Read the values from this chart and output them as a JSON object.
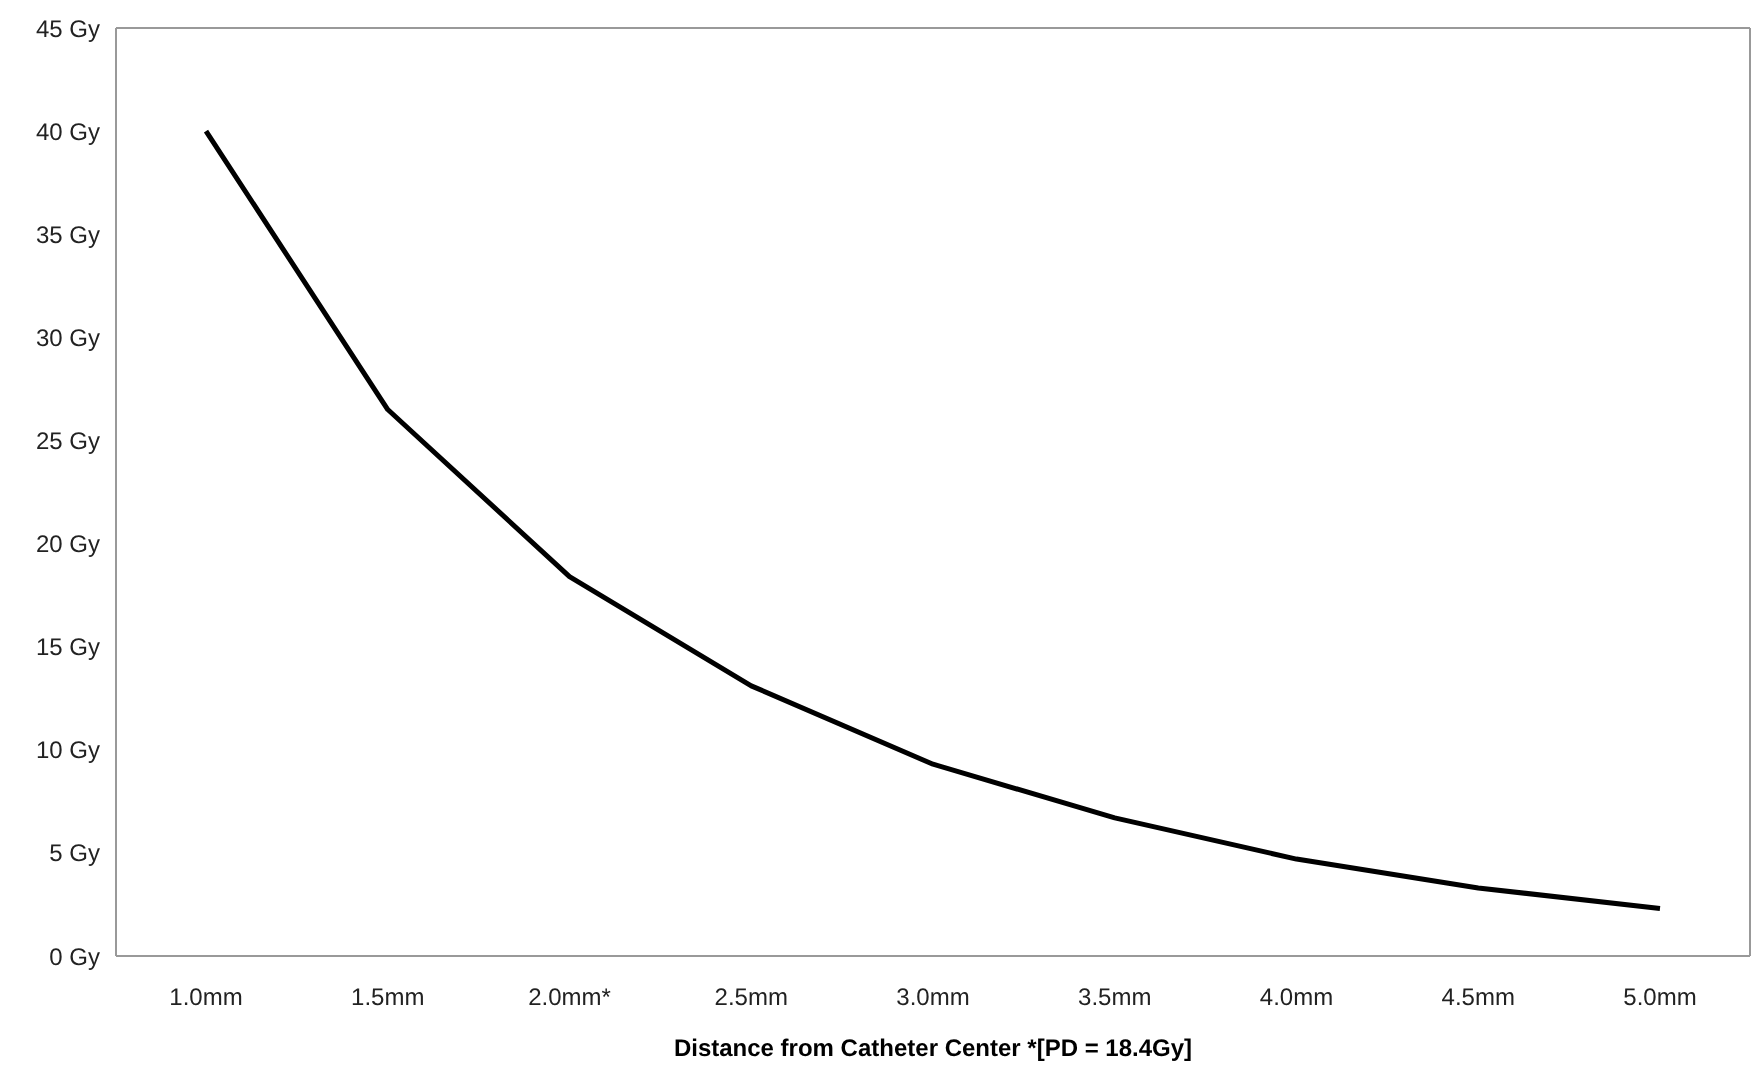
{
  "chart_data": {
    "type": "line",
    "xlabel": "Distance from Catheter Center *[PD = 18.4Gy]",
    "categories": [
      "1.0mm",
      "1.5mm",
      "2.0mm*",
      "2.5mm",
      "3.0mm",
      "3.5mm",
      "4.0mm",
      "4.5mm",
      "5.0mm"
    ],
    "series": [
      {
        "color": "#000000",
        "values": [
          40,
          26.5,
          18.4,
          13.1,
          9.3,
          6.7,
          4.7,
          3.3,
          2.3
        ]
      }
    ],
    "ylim": [
      0,
      45
    ],
    "yticks": [
      {
        "value": 0,
        "label": "0 Gy"
      },
      {
        "value": 5,
        "label": "5 Gy"
      },
      {
        "value": 10,
        "label": "10 Gy"
      },
      {
        "value": 15,
        "label": "15 Gy"
      },
      {
        "value": 20,
        "label": "20 Gy"
      },
      {
        "value": 25,
        "label": "25 Gy"
      },
      {
        "value": 30,
        "label": "30 Gy"
      },
      {
        "value": 35,
        "label": "35 Gy"
      },
      {
        "value": 40,
        "label": "40 Gy"
      },
      {
        "value": 45,
        "label": "45 Gy"
      }
    ],
    "grid": false,
    "legend": false,
    "marker": "none",
    "line_style": "solid"
  }
}
